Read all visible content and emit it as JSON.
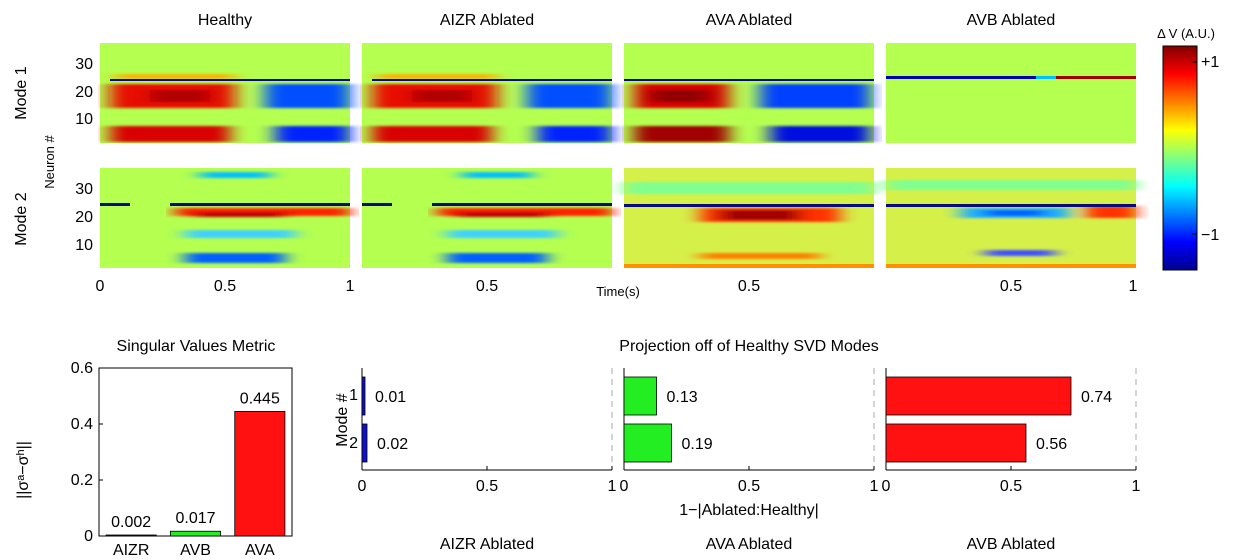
{
  "panel_titles": [
    "Healthy",
    "AIZR Ablated",
    "AVA Ablated",
    "AVB Ablated"
  ],
  "row_labels": [
    "Mode 1",
    "Mode 2"
  ],
  "neuron_axis_label": "Neuron #",
  "neuron_ticks": [
    "10",
    "20",
    "30"
  ],
  "time_ticks": [
    "0",
    "0.5",
    "1"
  ],
  "time_axis_label": "Time(s)",
  "colorbar": {
    "label": "Δ V (A.U.)",
    "ticks": [
      "+1",
      "−1"
    ]
  },
  "chart_data": [
    {
      "type": "heatmap",
      "description_rows": [
        "Mode 1",
        "Mode 2"
      ],
      "columns": [
        "Healthy",
        "AIZR Ablated",
        "AVA Ablated",
        "AVB Ablated"
      ],
      "xlabel": "Time(s)",
      "ylabel": "Neuron #",
      "xlim": [
        0,
        1
      ],
      "ylim": [
        0,
        37
      ],
      "clim": [
        -1.2,
        1.2
      ]
    },
    {
      "type": "bar",
      "title": "Singular Values Metric",
      "categories": [
        "AIZR",
        "AVB",
        "AVA"
      ],
      "values": [
        0.002,
        0.017,
        0.445
      ],
      "value_labels": [
        "0.002",
        "0.017",
        "0.445"
      ],
      "colors": [
        "#1010c8",
        "#22ee22",
        "#ff1111"
      ],
      "ylabel": "||σᵃ−σʰ||",
      "ylim": [
        0,
        0.6
      ],
      "yticks": [
        "0",
        "0.2",
        "0.4",
        "0.6"
      ]
    },
    {
      "type": "bar",
      "orientation": "horizontal",
      "title": "Projection off of Healthy SVD Modes",
      "xlabel": "1−|Ablated:Healthy|",
      "ylabel": "Mode #",
      "categories": [
        "1",
        "2"
      ],
      "xlim": [
        0,
        1
      ],
      "xticks": [
        "0",
        "0.5",
        "1"
      ],
      "series": [
        {
          "name": "AIZR Ablated",
          "color": "#1010c8",
          "values": [
            0.01,
            0.02
          ],
          "value_labels": [
            "0.01",
            "0.02"
          ]
        },
        {
          "name": "AVA Ablated",
          "color": "#22ee22",
          "values": [
            0.13,
            0.19
          ],
          "value_labels": [
            "0.13",
            "0.19"
          ]
        },
        {
          "name": "AVB Ablated",
          "color": "#ff1111",
          "values": [
            0.74,
            0.56
          ],
          "value_labels": [
            "0.74",
            "0.56"
          ]
        }
      ]
    }
  ]
}
